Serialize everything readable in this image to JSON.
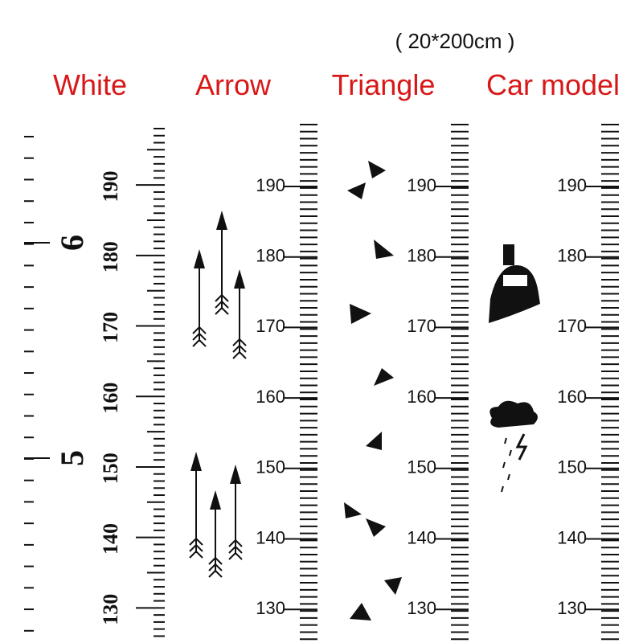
{
  "header": {
    "title": "( 20*200cm )"
  },
  "columns": [
    {
      "label": "White",
      "marks": [
        190,
        180,
        170,
        160,
        150,
        140,
        130
      ],
      "feet": [
        6,
        5
      ]
    },
    {
      "label": "Arrow",
      "marks": [
        190,
        180,
        170,
        160,
        150,
        140,
        130
      ]
    },
    {
      "label": "Triangle",
      "marks": [
        190,
        180,
        170,
        160,
        150,
        140,
        130
      ]
    },
    {
      "label": "Car model",
      "marks": [
        190,
        180,
        170,
        160,
        150,
        140,
        130
      ]
    }
  ]
}
